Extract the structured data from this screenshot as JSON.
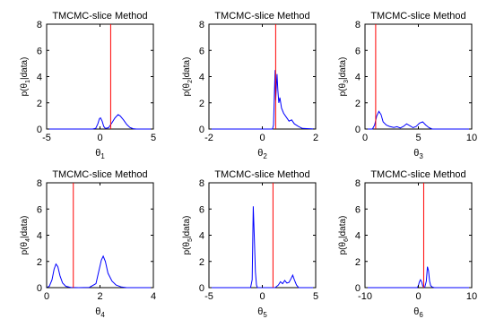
{
  "chart_data": [
    {
      "type": "line",
      "title": "TMCMC-slice Method",
      "ylabel_base": "p(θ",
      "ylabel_sub": "1",
      "ylabel_tail": "|data)",
      "xlabel_base": "θ",
      "xlabel_sub": "1",
      "xlim": [
        -5,
        5
      ],
      "ylim": [
        0,
        8
      ],
      "xticks": [
        -5,
        0,
        5
      ],
      "yticks": [
        0,
        2,
        4,
        6,
        8
      ],
      "ref_x": 1.0,
      "series": [
        {
          "color": "#0000ff",
          "x": [
            -5,
            -0.7,
            -0.4,
            -0.2,
            -0.05,
            0.05,
            0.2,
            0.35,
            0.5,
            0.8,
            1.1,
            1.4,
            1.7,
            1.9,
            2.2,
            2.5,
            2.8,
            3.1,
            3.4,
            5
          ],
          "y": [
            0,
            0,
            0.05,
            0.4,
            0.8,
            0.85,
            0.6,
            0.2,
            0.05,
            0.1,
            0.45,
            0.85,
            1.1,
            1.0,
            0.7,
            0.35,
            0.12,
            0.03,
            0,
            0
          ]
        }
      ]
    },
    {
      "type": "line",
      "title": "TMCMC-slice Method",
      "ylabel_base": "p(θ",
      "ylabel_sub": "2",
      "ylabel_tail": "|data)",
      "xlabel_base": "θ",
      "xlabel_sub": "2",
      "xlim": [
        -2,
        2
      ],
      "ylim": [
        0,
        8
      ],
      "xticks": [
        -2,
        0,
        2
      ],
      "yticks": [
        0,
        2,
        4,
        6,
        8
      ],
      "ref_x": 0.5,
      "series": [
        {
          "color": "#0000ff",
          "x": [
            -2,
            0.38,
            0.42,
            0.45,
            0.48,
            0.5,
            0.52,
            0.55,
            0.58,
            0.62,
            0.66,
            0.72,
            0.8,
            0.9,
            1.0,
            1.1,
            1.2,
            1.35,
            1.5,
            2
          ],
          "y": [
            0,
            0,
            0.3,
            2.5,
            4.5,
            2.2,
            3.0,
            4.2,
            3.0,
            2.0,
            2.4,
            1.6,
            1.2,
            0.9,
            0.6,
            0.7,
            0.4,
            0.2,
            0.05,
            0
          ]
        }
      ]
    },
    {
      "type": "line",
      "title": "TMCMC-slice Method",
      "ylabel_base": "p(θ",
      "ylabel_sub": "3",
      "ylabel_tail": "|data)",
      "xlabel_base": "θ",
      "xlabel_sub": "3",
      "xlim": [
        0,
        10
      ],
      "ylim": [
        0,
        8
      ],
      "xticks": [
        0,
        5,
        10
      ],
      "yticks": [
        0,
        2,
        4,
        6,
        8
      ],
      "ref_x": 1.0,
      "series": [
        {
          "color": "#0000ff",
          "x": [
            0,
            0.7,
            0.9,
            1.1,
            1.3,
            1.5,
            1.7,
            2.0,
            2.3,
            2.7,
            3.0,
            3.3,
            3.6,
            3.9,
            4.2,
            4.5,
            4.8,
            5.1,
            5.4,
            5.7,
            6.0,
            6.3,
            10
          ],
          "y": [
            0,
            0,
            0.3,
            1.0,
            1.35,
            1.1,
            0.55,
            0.3,
            0.2,
            0.12,
            0.18,
            0.08,
            0.2,
            0.4,
            0.25,
            0.1,
            0.2,
            0.45,
            0.55,
            0.3,
            0.1,
            0,
            0
          ]
        }
      ]
    },
    {
      "type": "line",
      "title": "TMCMC-slice Method",
      "ylabel_base": "p(θ",
      "ylabel_sub": "4",
      "ylabel_tail": "|data)",
      "xlabel_base": "θ",
      "xlabel_sub": "4",
      "xlim": [
        0,
        4
      ],
      "ylim": [
        0,
        8
      ],
      "xticks": [
        0,
        2,
        4
      ],
      "yticks": [
        0,
        2,
        4,
        6,
        8
      ],
      "ref_x": 1.0,
      "series": [
        {
          "color": "#0000ff",
          "x": [
            0,
            0.1,
            0.2,
            0.28,
            0.35,
            0.42,
            0.5,
            0.6,
            0.72,
            0.9,
            1.2,
            1.6,
            1.85,
            1.95,
            2.05,
            2.12,
            2.2,
            2.3,
            2.45,
            2.6,
            2.8,
            3.0,
            4
          ],
          "y": [
            0,
            0.1,
            0.6,
            1.4,
            1.8,
            1.6,
            0.9,
            0.35,
            0.1,
            0.02,
            0,
            0.02,
            0.3,
            1.2,
            2.1,
            2.4,
            2.0,
            1.1,
            0.5,
            0.2,
            0.05,
            0,
            0
          ]
        }
      ]
    },
    {
      "type": "line",
      "title": "TMCMC-slice Method",
      "ylabel_base": "p(θ",
      "ylabel_sub": "5",
      "ylabel_tail": "|data)",
      "xlabel_base": "θ",
      "xlabel_sub": "5",
      "xlim": [
        -5,
        5
      ],
      "ylim": [
        0,
        8
      ],
      "xticks": [
        -5,
        0,
        5
      ],
      "yticks": [
        0,
        2,
        4,
        6,
        8
      ],
      "ref_x": 1.0,
      "series": [
        {
          "color": "#0000ff",
          "x": [
            -5,
            -1.1,
            -0.95,
            -0.85,
            -0.75,
            -0.65,
            -0.55,
            -0.45,
            0,
            1.2,
            1.5,
            1.7,
            1.9,
            2.1,
            2.3,
            2.5,
            2.7,
            2.85,
            3.0,
            3.2,
            3.4,
            5
          ],
          "y": [
            0,
            0,
            0.6,
            6.2,
            3.8,
            1.2,
            0.2,
            0,
            0,
            0,
            0.2,
            0.45,
            0.3,
            0.55,
            0.35,
            0.4,
            0.7,
            0.95,
            0.6,
            0.2,
            0,
            0
          ]
        }
      ]
    },
    {
      "type": "line",
      "title": "TMCMC-slice Method",
      "ylabel_base": "p(θ",
      "ylabel_sub": "6",
      "ylabel_tail": "|data)",
      "xlabel_base": "θ",
      "xlabel_sub": "6",
      "xlim": [
        -10,
        10
      ],
      "ylim": [
        0,
        8
      ],
      "xticks": [
        -10,
        0,
        10
      ],
      "yticks": [
        0,
        2,
        4,
        6,
        8
      ],
      "ref_x": 1.0,
      "series": [
        {
          "color": "#0000ff",
          "x": [
            -10,
            -0.2,
            0,
            0.2,
            0.4,
            0.6,
            0.8,
            1.0,
            1.2,
            1.5,
            1.7,
            1.9,
            2.1,
            2.3,
            2.6,
            3.0,
            10
          ],
          "y": [
            0,
            0,
            0.15,
            0.45,
            0.6,
            0.45,
            0.15,
            0.05,
            0.02,
            0.5,
            1.6,
            1.3,
            0.5,
            0.15,
            0.05,
            0,
            0
          ]
        }
      ]
    }
  ]
}
